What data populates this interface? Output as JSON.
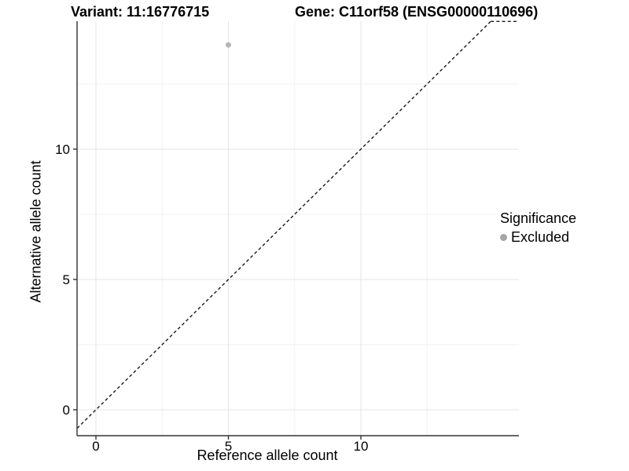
{
  "chart_data": {
    "type": "scatter",
    "title_left": "Variant: 11:16776715",
    "title_right": "Gene: C11orf58 (ENSG00000110696)",
    "xlabel": "Reference allele count",
    "ylabel": "Alternative allele count",
    "x_ticks": [
      0,
      5,
      10
    ],
    "y_ticks": [
      0,
      5,
      10
    ],
    "x_minor_ticks": [
      2.5,
      7.5,
      12.5
    ],
    "y_minor_ticks": [
      2.5,
      7.5,
      12.5
    ],
    "xlim": [
      -0.71,
      15.95
    ],
    "ylim": [
      -1.0,
      14.9
    ],
    "grid": "major+minor",
    "legend_position": "right",
    "points": [
      {
        "x": 5,
        "y": 14,
        "series": "Excluded"
      }
    ],
    "reference_line": {
      "type": "identity",
      "slope": 1,
      "intercept": 0,
      "style": "dashed"
    },
    "legend": {
      "title": "Significance",
      "items": [
        {
          "label": "Excluded"
        }
      ]
    },
    "colors": {
      "point": "#b5b5b5",
      "legend_point": "#a6a6a6",
      "grid_major": "#e5e5e5",
      "grid_minor": "#f2f2f2",
      "axis": "#333333",
      "ref_line": "#1a1a1a",
      "text": "#000000"
    }
  }
}
